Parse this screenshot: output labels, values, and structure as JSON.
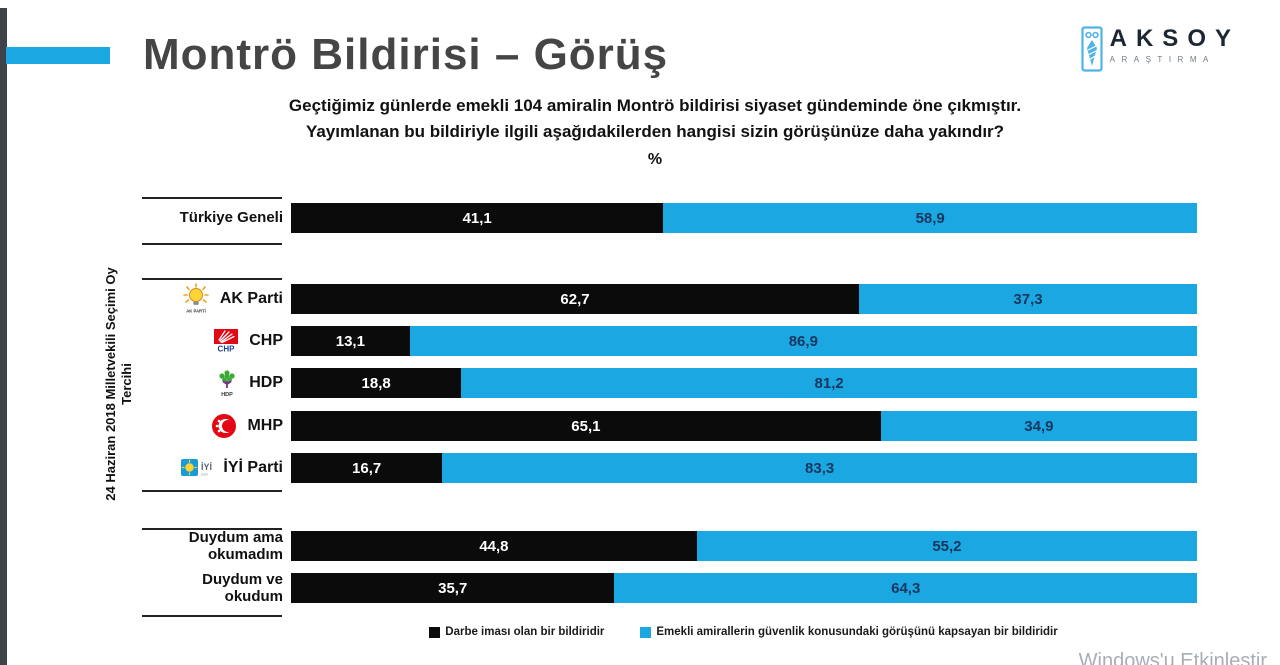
{
  "page": {
    "title": "Montrö Bildirisi – Görüş",
    "watermark": "Windows'u Etkinleştir"
  },
  "brand": {
    "name": "AKSOY",
    "subtitle": "ARAŞTIRMA",
    "icon_color": "#4FB3E8"
  },
  "question": {
    "line1": "Geçtiğimiz günlerde emekli 104 amiralin Montrö bildirisi siyaset gündeminde öne çıkmıştır.",
    "line2": "Yayımlanan bu bildiriyle ilgili aşağıdakilerden hangisi sizin görüşünüze daha yakındır?",
    "unit_label": "%"
  },
  "chart_data": {
    "type": "bar",
    "orientation": "horizontal",
    "stacked": true,
    "unit": "%",
    "xlim": [
      0,
      100
    ],
    "group_axis_label": "24 Haziran 2018 Milletvekili Seçimi Oy Tercihi",
    "colors": {
      "series_black": "#0B0B0B",
      "series_blue": "#1BA7E2",
      "value_on_black": "#FFFFFF",
      "value_on_blue": "#17375E",
      "accent": "#1BA7E2"
    },
    "legend": [
      {
        "label": "Darbe iması olan bir bildiridir",
        "color": "#0B0B0B"
      },
      {
        "label": "Emekli amirallerin güvenlik konusundaki görüşünü kapsayan bir bildiridir",
        "color": "#1BA7E2"
      }
    ],
    "series_names": [
      "Darbe iması olan bir bildiridir",
      "Emekli amirallerin güvenlik konusundaki görüşünü kapsayan bir bildiridir"
    ],
    "rows": [
      {
        "label": "Türkiye Geneli",
        "group": "genel",
        "logo": null,
        "values": [
          41.1,
          58.9
        ],
        "labels": [
          "41,1",
          "58,9"
        ]
      },
      {
        "label": "AK Parti",
        "group": "parti",
        "logo": "akp",
        "values": [
          62.7,
          37.3
        ],
        "labels": [
          "62,7",
          "37,3"
        ]
      },
      {
        "label": "CHP",
        "group": "parti",
        "logo": "chp",
        "values": [
          13.1,
          86.9
        ],
        "labels": [
          "13,1",
          "86,9"
        ]
      },
      {
        "label": "HDP",
        "group": "parti",
        "logo": "hdp",
        "values": [
          18.8,
          81.2
        ],
        "labels": [
          "18,8",
          "81,2"
        ]
      },
      {
        "label": "MHP",
        "group": "parti",
        "logo": "mhp",
        "values": [
          65.1,
          34.9
        ],
        "labels": [
          "65,1",
          "34,9"
        ]
      },
      {
        "label": "İYİ Parti",
        "group": "parti",
        "logo": "iyi",
        "values": [
          16.7,
          83.3
        ],
        "labels": [
          "16,7",
          "83,3"
        ]
      },
      {
        "label": "Duydum ama okumadım",
        "group": "okunma",
        "logo": null,
        "values": [
          44.8,
          55.2
        ],
        "labels": [
          "44,8",
          "55,2"
        ]
      },
      {
        "label": "Duydum ve okudum",
        "group": "okunma",
        "logo": null,
        "values": [
          35.7,
          64.3
        ],
        "labels": [
          "35,7",
          "64,3"
        ]
      }
    ]
  }
}
